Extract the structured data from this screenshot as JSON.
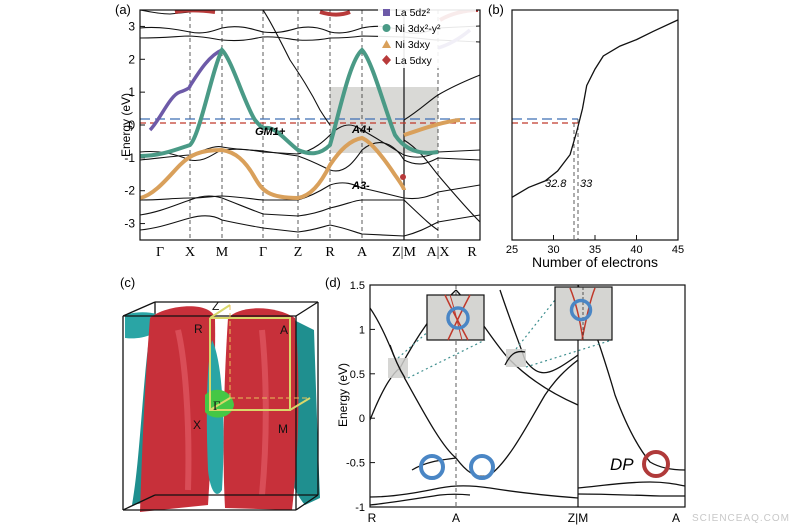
{
  "watermark": "SCIENCEAQ.COM",
  "chart_data": [
    {
      "panel": "(a)",
      "type": "line",
      "ylabel": "Energy (eV)",
      "ylim": [
        -3.5,
        3.5
      ],
      "yticks": [
        "3",
        "2",
        "1",
        "0",
        "-1",
        "-2",
        "-3"
      ],
      "xticks": [
        "Γ",
        "X",
        "M",
        "Γ",
        "Z",
        "R",
        "A",
        "Z|M",
        "A|X",
        "R"
      ],
      "legend_position": "top-right",
      "legend": [
        {
          "label": "La 5dz²",
          "color": "#6d5aa8",
          "marker": "square"
        },
        {
          "label": "Ni 3dx²-y²",
          "color": "#4a9a86",
          "marker": "circle"
        },
        {
          "label": "Ni 3dxy",
          "color": "#d9a05b",
          "marker": "triangle"
        },
        {
          "label": "La 5dxy",
          "color": "#b83a3a",
          "marker": "diamond"
        }
      ],
      "annotations": [
        "GM1+",
        "A4+",
        "A3-"
      ],
      "fermi_levels": [
        0.0,
        -0.05
      ]
    },
    {
      "panel": "(b)",
      "type": "line",
      "xlabel": "Number of electrons",
      "xlim": [
        25,
        45
      ],
      "xticks": [
        "25",
        "30",
        "35",
        "40",
        "45"
      ],
      "ylim": [
        -3.5,
        3.5
      ],
      "annotations": [
        "32.8",
        "33"
      ],
      "points": [
        {
          "x": 25,
          "y": -2.2
        },
        {
          "x": 27,
          "y": -1.9
        },
        {
          "x": 29,
          "y": -1.7
        },
        {
          "x": 30.5,
          "y": -1.4
        },
        {
          "x": 32,
          "y": -0.9
        },
        {
          "x": 32.8,
          "y": -0.2
        },
        {
          "x": 33,
          "y": 0.0
        },
        {
          "x": 33.5,
          "y": 0.5
        },
        {
          "x": 34,
          "y": 1.2
        },
        {
          "x": 35,
          "y": 1.7
        },
        {
          "x": 36,
          "y": 2.1
        },
        {
          "x": 38,
          "y": 2.4
        },
        {
          "x": 40,
          "y": 2.6
        },
        {
          "x": 42,
          "y": 2.85
        },
        {
          "x": 45,
          "y": 3.2
        }
      ]
    },
    {
      "panel": "(c)",
      "type": "diagram",
      "labels": [
        "Z",
        "R",
        "A",
        "Γ",
        "X",
        "M"
      ]
    },
    {
      "panel": "(d)",
      "type": "line",
      "ylabel": "Energy (eV)",
      "ylim": [
        -1.0,
        1.5
      ],
      "yticks": [
        "1.5",
        "1",
        "0.5",
        "0",
        "-0.5",
        "-1"
      ],
      "xticks": [
        "R",
        "A",
        "Z|M",
        "A"
      ],
      "annotations": [
        "DP"
      ]
    }
  ]
}
